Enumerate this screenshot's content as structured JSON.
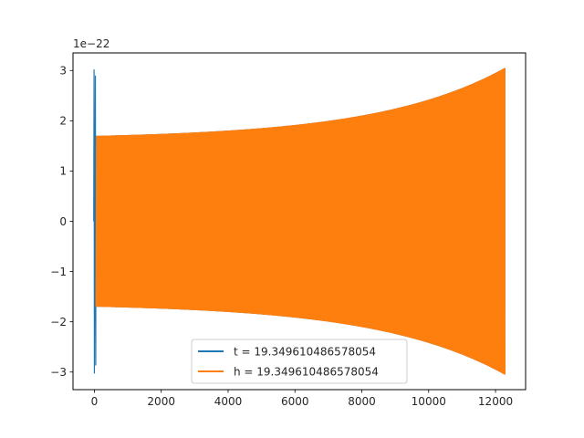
{
  "chart_data": {
    "type": "line",
    "title": "",
    "xlabel": "",
    "ylabel": "",
    "y_offset_label": "1e−22",
    "xlim": [
      -640,
      12900
    ],
    "ylim": [
      -3.35,
      3.35
    ],
    "x_ticks": [
      0,
      2000,
      4000,
      6000,
      8000,
      10000,
      12000
    ],
    "x_tick_labels": [
      "0",
      "2000",
      "4000",
      "6000",
      "8000",
      "10000",
      "12000"
    ],
    "y_ticks": [
      -3,
      -2,
      -1,
      0,
      1,
      2,
      3
    ],
    "y_tick_labels": [
      "−3",
      "−2",
      "−1",
      "0",
      "1",
      "2",
      "3"
    ],
    "grid": false,
    "legend_position": "lower center",
    "series": [
      {
        "name": "t = 19.349610486578054",
        "color": "#1f77b4",
        "x_range": [
          0,
          12280
        ],
        "amplitude_start": 1.7,
        "amplitude_end": 3.05,
        "initial_spike": [
          3.02,
          -3.03
        ],
        "cycles_approx": 420
      },
      {
        "name": "h = 19.349610486578054",
        "color": "#ff7f0e",
        "x_range": [
          0,
          12280
        ],
        "amplitude_start": 1.7,
        "amplitude_end": 3.05,
        "cycles_approx": 420
      }
    ]
  }
}
